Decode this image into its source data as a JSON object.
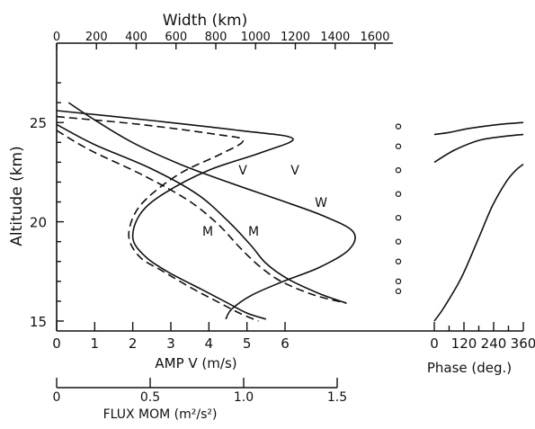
{
  "chart_data": {
    "type": "line",
    "title": "",
    "left_panel": {
      "ylabel": "Altitude (km)",
      "ylim": [
        14.5,
        28
      ],
      "y_ticks": [
        15,
        20,
        25
      ],
      "x_amp": {
        "label": "AMP V (m/s)",
        "ticks": [
          "0",
          "1",
          "2",
          "3",
          "4",
          "5",
          "6"
        ],
        "range": [
          0,
          6
        ]
      },
      "x_width": {
        "label": "Width (km)",
        "ticks": [
          "0",
          "200",
          "400",
          "600",
          "800",
          "1000",
          "1200",
          "1400",
          "1600"
        ],
        "range": [
          0,
          1600
        ]
      },
      "x_flux": {
        "label": "FLUX MOM (m²/s²)",
        "ticks": [
          "0",
          "0.5",
          "1.0",
          "1.5"
        ],
        "range": [
          0,
          1.5
        ]
      },
      "series": [
        {
          "name": "V",
          "axis": "amp",
          "style": "solid",
          "points": [
            [
              0,
              25.6
            ],
            [
              2.5,
              25.1
            ],
            [
              4.8,
              24.6
            ],
            [
              6.2,
              24.2
            ],
            [
              5.4,
              23.5
            ],
            [
              4.0,
              22.6
            ],
            [
              2.8,
              21.4
            ],
            [
              2.2,
              20.4
            ],
            [
              2.0,
              19.2
            ],
            [
              2.3,
              18.3
            ],
            [
              2.9,
              17.5
            ],
            [
              3.8,
              16.6
            ],
            [
              4.5,
              15.9
            ],
            [
              5.0,
              15.4
            ],
            [
              5.5,
              15.1
            ]
          ]
        },
        {
          "name": "V",
          "axis": "amp",
          "style": "dashed",
          "points": [
            [
              0,
              25.3
            ],
            [
              2.2,
              24.9
            ],
            [
              4.2,
              24.4
            ],
            [
              4.9,
              24.1
            ],
            [
              4.3,
              23.4
            ],
            [
              3.3,
              22.5
            ],
            [
              2.5,
              21.4
            ],
            [
              2.05,
              20.4
            ],
            [
              1.9,
              19.2
            ],
            [
              2.2,
              18.2
            ],
            [
              2.8,
              17.5
            ],
            [
              3.6,
              16.6
            ],
            [
              4.3,
              15.9
            ],
            [
              4.8,
              15.4
            ],
            [
              5.3,
              15.0
            ]
          ]
        },
        {
          "name": "M",
          "axis": "flux",
          "style": "solid",
          "points": [
            [
              0,
              24.9
            ],
            [
              0.2,
              23.9
            ],
            [
              0.5,
              22.7
            ],
            [
              0.75,
              21.4
            ],
            [
              0.92,
              20.0
            ],
            [
              1.04,
              18.8
            ],
            [
              1.12,
              17.9
            ],
            [
              1.24,
              17.1
            ],
            [
              1.4,
              16.4
            ],
            [
              1.55,
              15.9
            ]
          ]
        },
        {
          "name": "M",
          "axis": "flux",
          "style": "dashed",
          "points": [
            [
              0,
              24.6
            ],
            [
              0.18,
              23.6
            ],
            [
              0.45,
              22.4
            ],
            [
              0.7,
              21.1
            ],
            [
              0.86,
              19.9
            ],
            [
              0.98,
              18.7
            ],
            [
              1.08,
              17.8
            ],
            [
              1.2,
              17.0
            ],
            [
              1.38,
              16.3
            ],
            [
              1.55,
              15.9
            ]
          ]
        },
        {
          "name": "W",
          "axis": "width",
          "style": "solid",
          "points": [
            [
              60,
              26.0
            ],
            [
              180,
              25.2
            ],
            [
              380,
              24.0
            ],
            [
              620,
              22.9
            ],
            [
              860,
              22.0
            ],
            [
              1120,
              21.1
            ],
            [
              1340,
              20.3
            ],
            [
              1490,
              19.5
            ],
            [
              1470,
              18.6
            ],
            [
              1320,
              17.7
            ],
            [
              1140,
              17.0
            ],
            [
              980,
              16.3
            ],
            [
              880,
              15.6
            ],
            [
              850,
              15.1
            ]
          ]
        }
      ],
      "curve_labels": [
        "V",
        "V",
        "W",
        "M",
        "M"
      ]
    },
    "right_panel": {
      "xlabel": "Phase (deg.)",
      "x_ticks": [
        "0",
        "120",
        "240",
        "360"
      ],
      "xlim": [
        0,
        360
      ],
      "series": [
        {
          "name": "",
          "points": [
            [
              0,
              24.4
            ],
            [
              60,
              24.5
            ],
            [
              140,
              24.7
            ],
            [
              260,
              24.9
            ],
            [
              360,
              25.0
            ]
          ]
        },
        {
          "name": "",
          "points": [
            [
              0,
              23.0
            ],
            [
              80,
              23.6
            ],
            [
              180,
              24.1
            ],
            [
              280,
              24.3
            ],
            [
              360,
              24.4
            ]
          ]
        },
        {
          "name": "",
          "points": [
            [
              0,
              15.0
            ],
            [
              40,
              15.7
            ],
            [
              110,
              17.2
            ],
            [
              180,
              19.2
            ],
            [
              235,
              20.8
            ],
            [
              290,
              22.0
            ],
            [
              330,
              22.6
            ],
            [
              360,
              22.9
            ]
          ]
        }
      ]
    },
    "markers": [
      16.5,
      17.0,
      18.0,
      19.0,
      20.2,
      21.4,
      22.6,
      23.8,
      24.8
    ]
  }
}
